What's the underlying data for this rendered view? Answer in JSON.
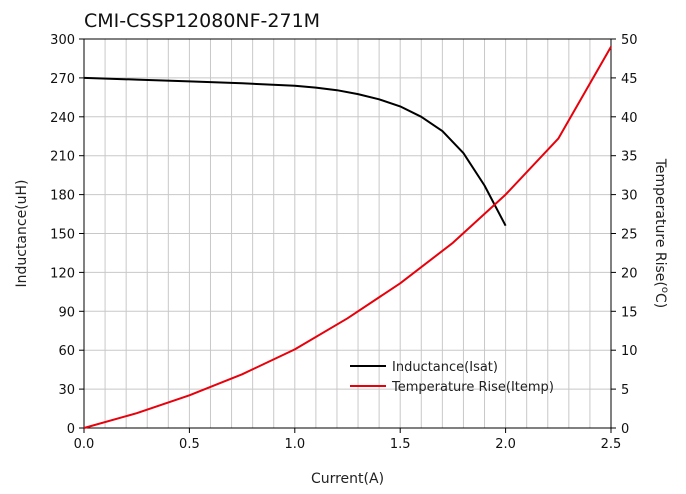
{
  "chart_data": {
    "type": "line",
    "title": "CMI-CSSP12080NF-271M",
    "xlabel": "Current(A)",
    "ylabel": "Inductance(uH)",
    "y2label_main": "Temperature Rise(",
    "y2label_sup": "o",
    "y2label_end": "C)",
    "xlim": [
      0,
      2.5
    ],
    "ylim": [
      0,
      300
    ],
    "y2lim": [
      0,
      50
    ],
    "x_ticks": [
      "0.0",
      "0.5",
      "1.0",
      "1.5",
      "2.0",
      "2.5"
    ],
    "y_ticks": [
      "0",
      "30",
      "60",
      "90",
      "120",
      "150",
      "180",
      "210",
      "240",
      "270",
      "300"
    ],
    "y2_ticks": [
      "0",
      "5",
      "10",
      "15",
      "20",
      "25",
      "30",
      "35",
      "40",
      "45",
      "50"
    ],
    "grid": true,
    "legend_position": "bottom-right",
    "series": [
      {
        "name": "Inductance(Isat)",
        "axis": "left",
        "color": "#000000",
        "x": [
          0,
          0.25,
          0.5,
          0.75,
          1.0,
          1.1,
          1.2,
          1.3,
          1.4,
          1.5,
          1.6,
          1.7,
          1.8,
          1.9,
          2.0
        ],
        "y": [
          270,
          268.7,
          267.3,
          265.8,
          264,
          262.5,
          260.5,
          257.5,
          253.5,
          248,
          240,
          229,
          212,
          187,
          156
        ]
      },
      {
        "name": "Temperature Rise(Itemp)",
        "axis": "right",
        "color": "#e8000b",
        "x": [
          0,
          0.25,
          0.5,
          0.75,
          1.0,
          1.25,
          1.5,
          1.75,
          2.0,
          2.25,
          2.5
        ],
        "y": [
          0,
          1.9,
          4.2,
          6.9,
          10.1,
          14.1,
          18.6,
          23.8,
          30.0,
          37.2,
          49.0
        ]
      }
    ]
  }
}
